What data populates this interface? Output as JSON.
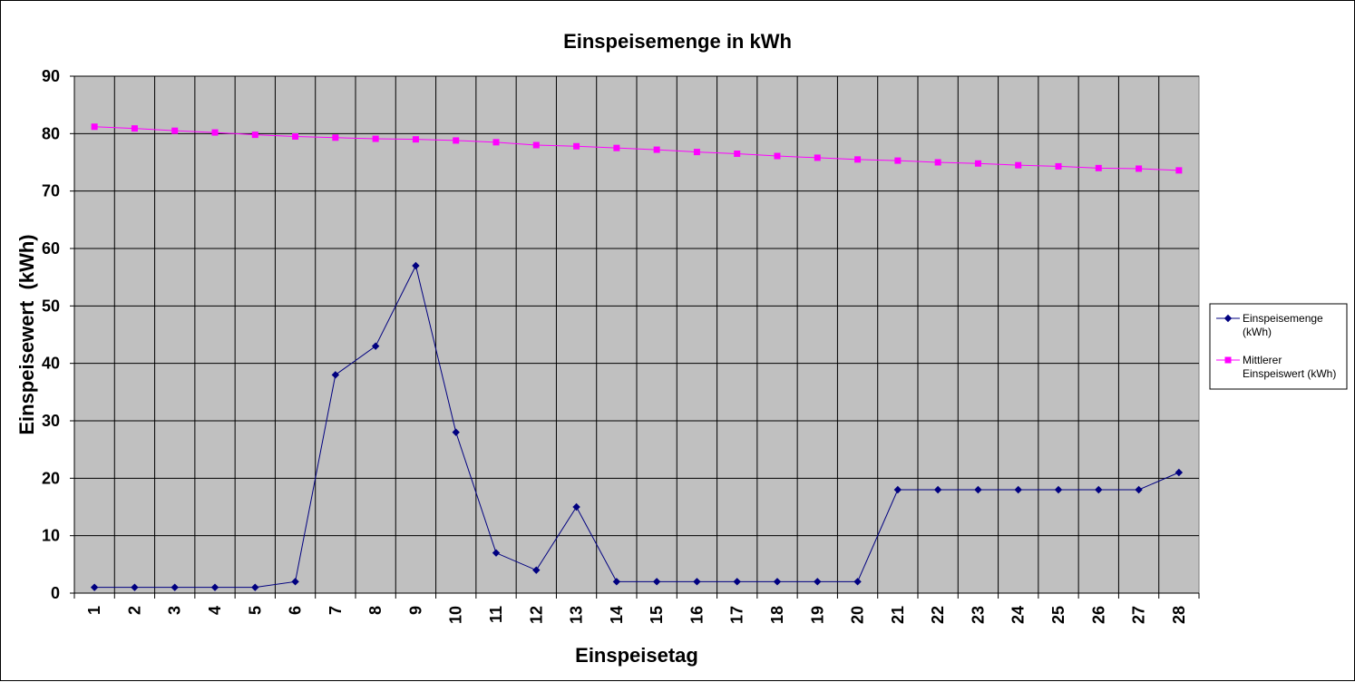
{
  "chart_data": {
    "type": "line",
    "title": "Einspeisemenge in kWh",
    "xlabel": "Einspeisetag",
    "ylabel": "Einspeisewert  (kWh)",
    "ylim": [
      0,
      90
    ],
    "yticks": [
      0,
      10,
      20,
      30,
      40,
      50,
      60,
      70,
      80,
      90
    ],
    "categories": [
      "1",
      "2",
      "3",
      "4",
      "5",
      "6",
      "7",
      "8",
      "9",
      "10",
      "11",
      "12",
      "13",
      "14",
      "15",
      "16",
      "17",
      "18",
      "19",
      "20",
      "21",
      "22",
      "23",
      "24",
      "25",
      "26",
      "27",
      "28"
    ],
    "grid": true,
    "legend_position": "right",
    "plot_background": "#c0c0c0",
    "series": [
      {
        "name_lines": [
          "Einspeisemenge",
          "(kWh)"
        ],
        "color": "#000080",
        "marker": "diamond",
        "values": [
          1,
          1,
          1,
          1,
          1,
          2,
          38,
          43,
          57,
          28,
          7,
          4,
          15,
          2,
          2,
          2,
          2,
          2,
          2,
          2,
          18,
          18,
          18,
          18,
          18,
          18,
          18,
          21
        ]
      },
      {
        "name_lines": [
          "Mittlerer",
          "Einspeiswert (kWh)"
        ],
        "color": "#ff00ff",
        "marker": "square",
        "values": [
          81.2,
          80.9,
          80.5,
          80.2,
          79.8,
          79.5,
          79.3,
          79.1,
          79.0,
          78.8,
          78.5,
          78.0,
          77.8,
          77.5,
          77.2,
          76.8,
          76.5,
          76.1,
          75.8,
          75.5,
          75.3,
          75.0,
          74.8,
          74.5,
          74.3,
          74.0,
          73.9,
          73.6
        ]
      }
    ]
  }
}
